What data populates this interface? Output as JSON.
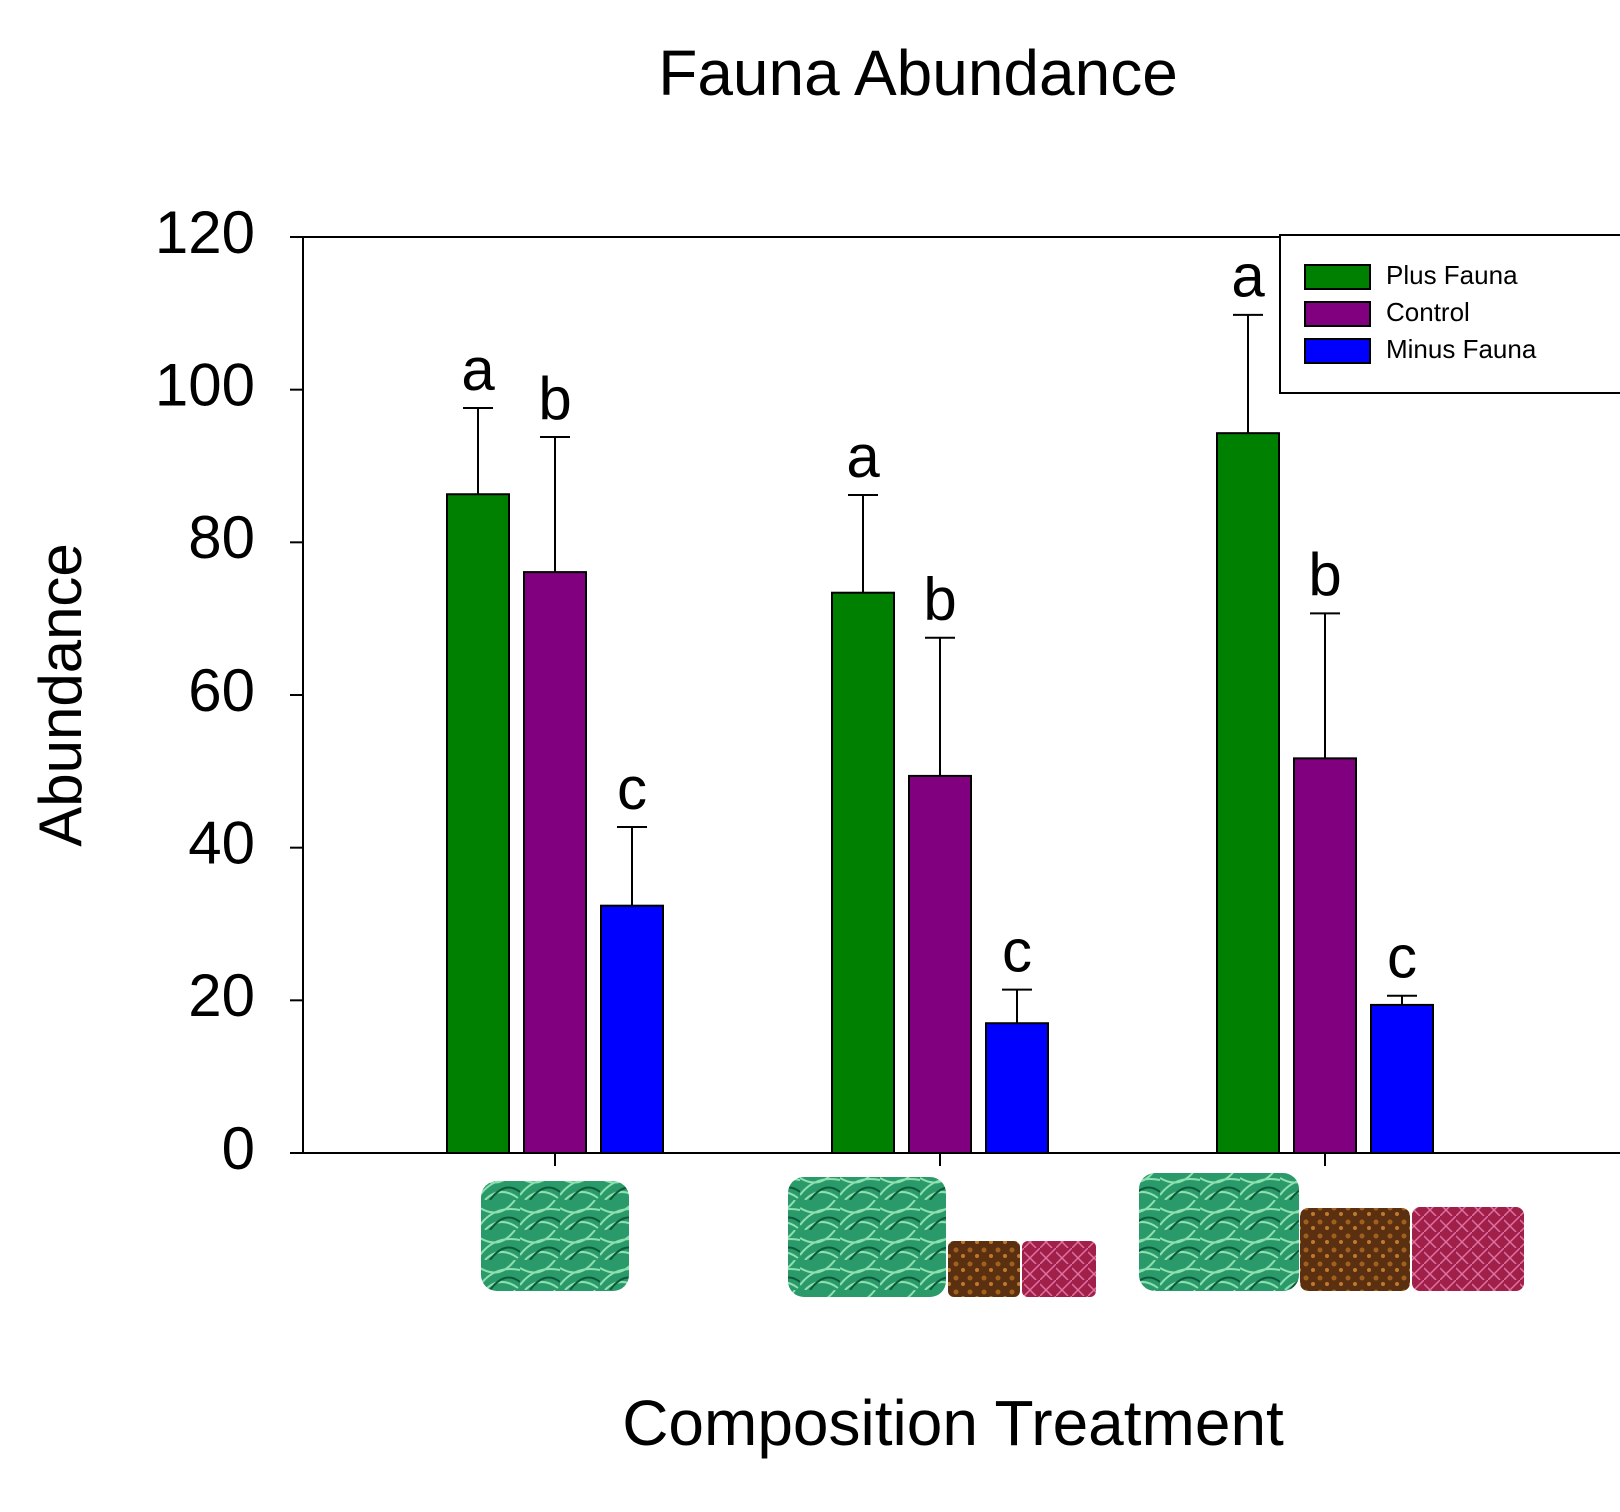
{
  "chart_data": {
    "type": "bar",
    "title": "Fauna Abundance",
    "x_label": "Composition Treatment",
    "y_label": "Abundance",
    "categories": [
      null,
      null,
      null
    ],
    "series": [
      {
        "name": "Plus Fauna",
        "color": "#008000",
        "values": [
          86.3,
          73.4,
          94.3
        ],
        "errors": [
          11.3,
          12.8,
          15.5
        ],
        "letters": [
          "a",
          "a",
          "a"
        ]
      },
      {
        "name": "Control",
        "color": "#800080",
        "values": [
          76.1,
          49.4,
          51.7
        ],
        "errors": [
          17.7,
          18.1,
          19.0
        ],
        "letters": [
          "b",
          "b",
          "b"
        ]
      },
      {
        "name": "Minus Fauna",
        "color": "#0000ff",
        "values": [
          32.4,
          17.0,
          19.4
        ],
        "errors": [
          10.3,
          4.4,
          1.2
        ],
        "letters": [
          "c",
          "c",
          "c"
        ]
      }
    ],
    "ylim": [
      0,
      120
    ],
    "yticks": [
      0,
      20,
      40,
      60,
      80,
      100,
      120
    ],
    "grid": false,
    "legend": "upper right"
  }
}
